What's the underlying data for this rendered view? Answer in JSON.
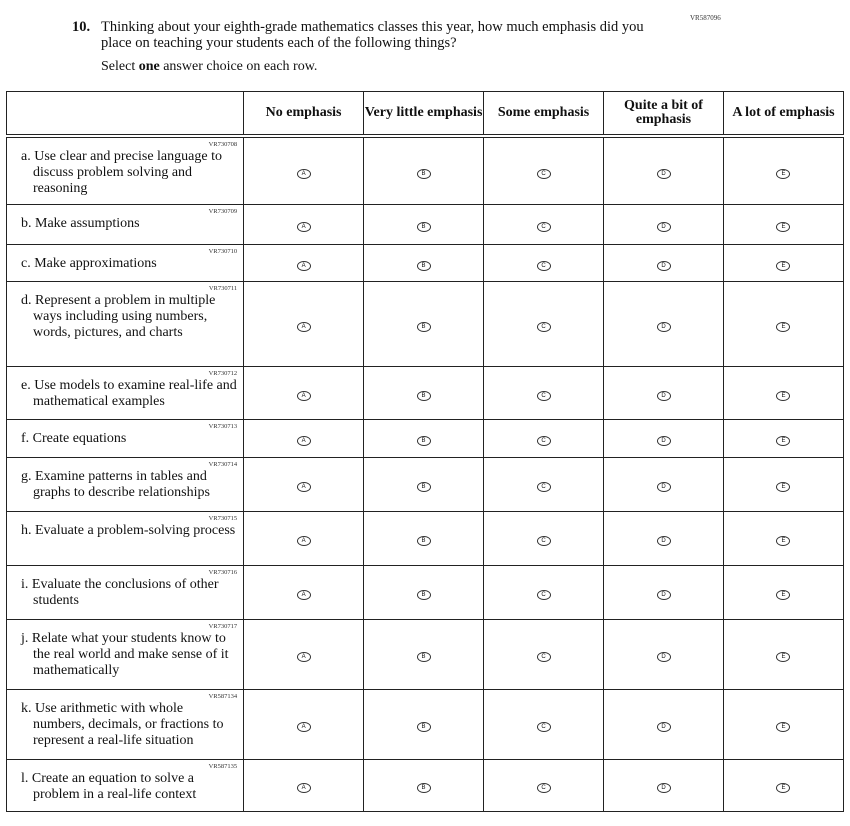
{
  "question": {
    "code": "VR587096",
    "number": "10.",
    "text": "Thinking about your eighth-grade mathematics classes this year, how much emphasis did you place on teaching your students each of the following things?",
    "instruction_pre": "Select ",
    "instruction_bold": "one",
    "instruction_post": " answer choice on each row."
  },
  "columns": [
    "No emphasis",
    "Very little emphasis",
    "Some emphasis",
    "Quite a bit of emphasis",
    "A lot of emphasis"
  ],
  "option_letters": [
    "A",
    "B",
    "C",
    "D",
    "E"
  ],
  "rows": [
    {
      "code": "VR730708",
      "text": "a. Use clear and precise language to discuss problem solving and reasoning",
      "h": 68
    },
    {
      "code": "VR730709",
      "text": "b. Make assumptions",
      "h": 40
    },
    {
      "code": "VR730710",
      "text": "c. Make approximations",
      "h": 37
    },
    {
      "code": "VR730711",
      "text": "d. Represent a problem in multiple ways including using numbers, words, pictures, and charts",
      "h": 85
    },
    {
      "code": "VR730712",
      "text": "e. Use models to examine real-life and mathematical examples",
      "h": 53
    },
    {
      "code": "VR730713",
      "text": "f. Create equations",
      "h": 38
    },
    {
      "code": "VR730714",
      "text": "g. Examine patterns in tables and graphs to describe relationships",
      "h": 54
    },
    {
      "code": "VR730715",
      "text": "h. Evaluate a problem-solving process",
      "h": 54
    },
    {
      "code": "VR730716",
      "text": "i. Evaluate the conclusions of other students",
      "h": 54
    },
    {
      "code": "VR730717",
      "text": "j. Relate what your students know to the real world and make sense of it mathematically",
      "h": 70
    },
    {
      "code": "VR587134",
      "text": "k. Use arithmetic with whole numbers, decimals, or fractions to represent a real-life situation",
      "h": 70
    },
    {
      "code": "VR587135",
      "text": "l. Create an equation to solve a problem in a real-life context",
      "h": 52
    }
  ]
}
